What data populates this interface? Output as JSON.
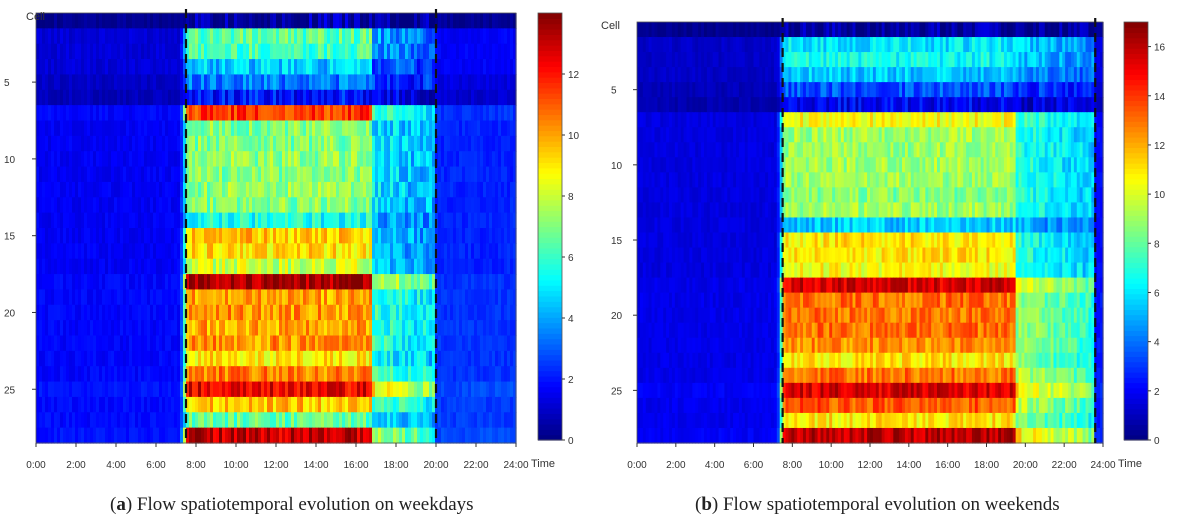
{
  "chart_data": [
    {
      "type": "heatmap",
      "panel_label": "a",
      "caption": "Flow spatiotemporal evolution on weekdays",
      "ylabel": "Cell",
      "xlabel": "Time",
      "x_ticks": [
        "0:00",
        "2:00",
        "4:00",
        "6:00",
        "8:00",
        "10:00",
        "12:00",
        "14:00",
        "16:00",
        "18:00",
        "20:00",
        "22:00",
        "24:00"
      ],
      "y_ticks": [
        5,
        10,
        15,
        20,
        25
      ],
      "x_range_hours": [
        0,
        24
      ],
      "cells": 28,
      "colorbar": {
        "colormap": "jet",
        "range": [
          0,
          14
        ],
        "ticks": [
          0,
          2,
          4,
          6,
          8,
          10,
          12
        ]
      },
      "dashed_lines_hours": [
        7.5,
        20
      ],
      "active_period_hours": [
        7.6,
        16.8
      ],
      "evening_period_hours": [
        16.8,
        20.0
      ],
      "cell_levels_active": [
        0.6,
        6.5,
        6.2,
        4.5,
        3.5,
        2.0,
        11.5,
        7.0,
        7.0,
        7.2,
        7.0,
        7.2,
        7.0,
        5.5,
        9.5,
        9.2,
        8.0,
        13.5,
        10.0,
        10.2,
        10.0,
        10.2,
        9.0,
        10.5,
        12.5,
        9.5,
        6.5,
        13.0
      ],
      "cell_levels_evening": [
        0.5,
        4.0,
        3.8,
        3.0,
        2.5,
        1.5,
        6.0,
        5.0,
        5.0,
        5.0,
        5.0,
        5.0,
        5.0,
        4.0,
        4.5,
        4.5,
        4.2,
        8.0,
        6.0,
        6.0,
        6.0,
        6.0,
        5.5,
        6.5,
        9.0,
        6.5,
        5.0,
        7.5
      ],
      "cell_levels_night": [
        0.3,
        1.5,
        1.5,
        1.5,
        1.2,
        1.0,
        2.2,
        2.0,
        2.0,
        2.0,
        2.0,
        2.0,
        2.0,
        2.0,
        2.0,
        2.0,
        2.0,
        2.2,
        2.2,
        2.2,
        2.2,
        2.2,
        2.2,
        2.2,
        2.5,
        2.3,
        2.3,
        2.5
      ]
    },
    {
      "type": "heatmap",
      "panel_label": "b",
      "caption": "Flow spatiotemporal evolution on weekends",
      "ylabel": "Cell",
      "xlabel": "Time",
      "x_ticks": [
        "0:00",
        "2:00",
        "4:00",
        "6:00",
        "8:00",
        "10:00",
        "12:00",
        "14:00",
        "16:00",
        "18:00",
        "20:00",
        "22:00",
        "24:00"
      ],
      "y_ticks": [
        5,
        10,
        15,
        20,
        25
      ],
      "x_range_hours": [
        0,
        24
      ],
      "cells": 28,
      "colorbar": {
        "colormap": "jet",
        "range": [
          0,
          17
        ],
        "ticks": [
          0,
          2,
          4,
          6,
          8,
          10,
          12,
          14,
          16
        ]
      },
      "dashed_lines_hours": [
        7.5,
        23.6
      ],
      "active_period_hours": [
        7.6,
        19.5
      ],
      "evening_period_hours": [
        19.5,
        23.6
      ],
      "cell_levels_active": [
        0.6,
        6.0,
        6.5,
        5.5,
        3.5,
        2.0,
        10.5,
        9.0,
        9.0,
        9.0,
        9.0,
        8.5,
        9.0,
        5.5,
        11.0,
        11.0,
        10.5,
        15.5,
        13.0,
        13.0,
        13.0,
        12.5,
        11.0,
        13.0,
        15.5,
        13.5,
        11.0,
        16.0
      ],
      "cell_levels_evening": [
        0.5,
        5.5,
        5.5,
        4.5,
        3.0,
        1.5,
        7.5,
        7.0,
        7.0,
        7.0,
        7.0,
        7.0,
        7.0,
        5.0,
        7.0,
        7.0,
        7.0,
        10.0,
        9.0,
        9.0,
        9.0,
        9.0,
        8.5,
        9.5,
        11.0,
        9.5,
        8.5,
        11.0
      ],
      "cell_levels_night": [
        0.3,
        1.5,
        1.5,
        1.5,
        1.2,
        1.0,
        2.0,
        2.0,
        2.0,
        2.0,
        2.0,
        2.0,
        2.0,
        2.0,
        2.0,
        2.0,
        2.0,
        2.2,
        2.2,
        2.2,
        2.2,
        2.2,
        2.2,
        2.2,
        2.5,
        2.3,
        2.3,
        2.5
      ]
    }
  ]
}
